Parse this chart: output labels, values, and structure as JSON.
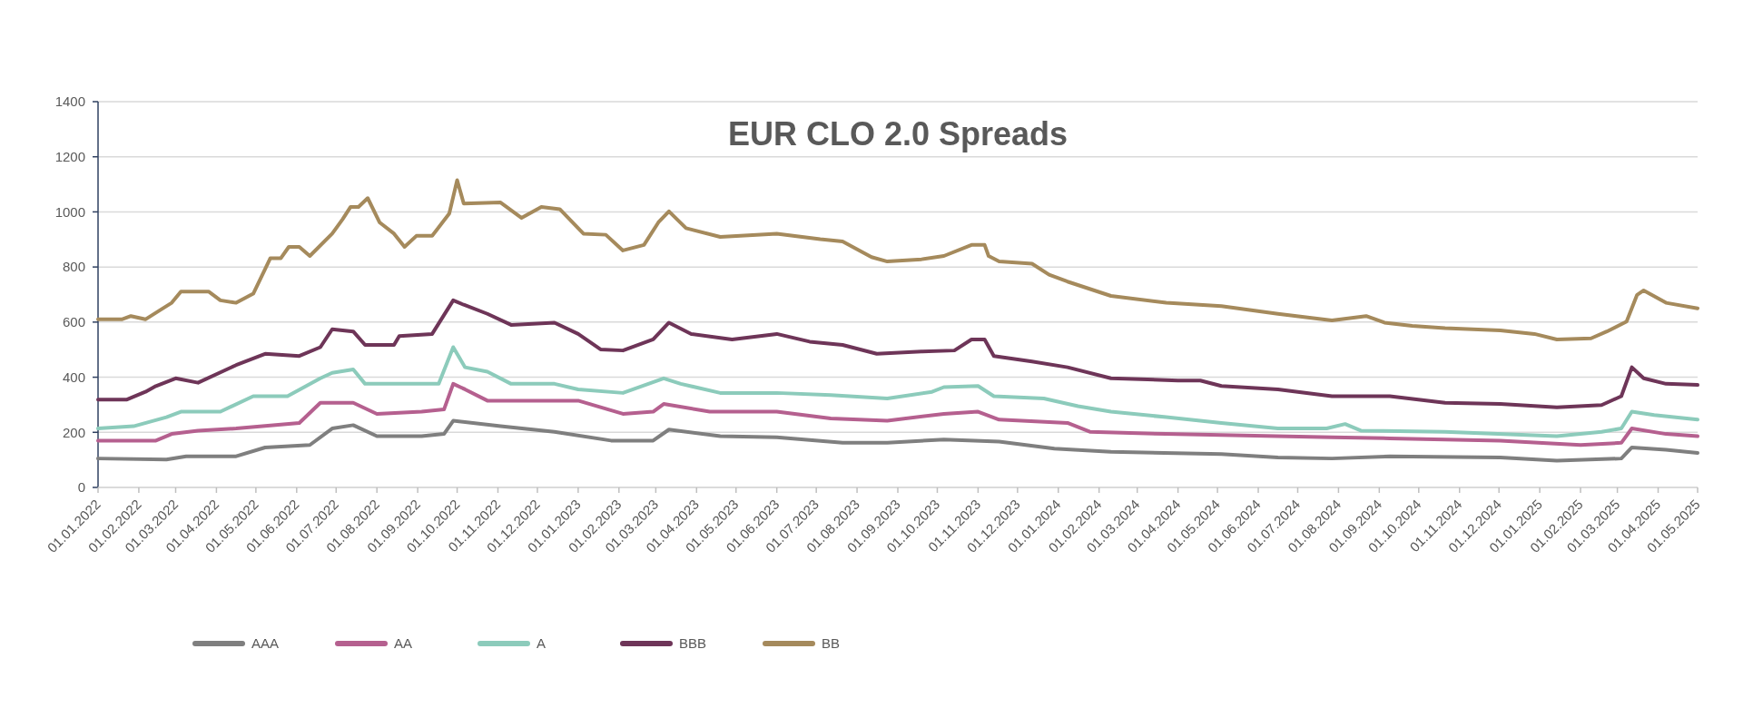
{
  "chart_data": {
    "type": "line",
    "title": "EUR CLO 2.0 Spreads",
    "legend": "bottom",
    "grid": "y",
    "line_style": "solid",
    "marker": "none",
    "xlim": [
      "2022-01-01",
      "2025-05-01"
    ],
    "ylim": [
      0,
      1400
    ],
    "yticks": [
      0,
      200,
      400,
      600,
      800,
      1000,
      1200,
      1400
    ],
    "xticks": [
      {
        "value": "2022-01-01",
        "label": "01.01.2022"
      },
      {
        "value": "2022-02-01",
        "label": "01.02.2022"
      },
      {
        "value": "2022-03-01",
        "label": "01.03.2022"
      },
      {
        "value": "2022-04-01",
        "label": "01.04.2022"
      },
      {
        "value": "2022-05-01",
        "label": "01.05.2022"
      },
      {
        "value": "2022-06-01",
        "label": "01.06.2022"
      },
      {
        "value": "2022-07-01",
        "label": "01.07.2022"
      },
      {
        "value": "2022-08-01",
        "label": "01.08.2022"
      },
      {
        "value": "2022-09-01",
        "label": "01.09.2022"
      },
      {
        "value": "2022-10-01",
        "label": "01.10.2022"
      },
      {
        "value": "2022-11-01",
        "label": "01.11.2022"
      },
      {
        "value": "2022-12-01",
        "label": "01.12.2022"
      },
      {
        "value": "2023-01-01",
        "label": "01.01.2023"
      },
      {
        "value": "2023-02-01",
        "label": "01.02.2023"
      },
      {
        "value": "2023-03-01",
        "label": "01.03.2023"
      },
      {
        "value": "2023-04-01",
        "label": "01.04.2023"
      },
      {
        "value": "2023-05-01",
        "label": "01.05.2023"
      },
      {
        "value": "2023-06-01",
        "label": "01.06.2023"
      },
      {
        "value": "2023-07-01",
        "label": "01.07.2023"
      },
      {
        "value": "2023-08-01",
        "label": "01.08.2023"
      },
      {
        "value": "2023-09-01",
        "label": "01.09.2023"
      },
      {
        "value": "2023-10-01",
        "label": "01.10.2023"
      },
      {
        "value": "2023-11-01",
        "label": "01.11.2023"
      },
      {
        "value": "2023-12-01",
        "label": "01.12.2023"
      },
      {
        "value": "2024-01-01",
        "label": "01.01.2024"
      },
      {
        "value": "2024-02-01",
        "label": "01.02.2024"
      },
      {
        "value": "2024-03-01",
        "label": "01.03.2024"
      },
      {
        "value": "2024-04-01",
        "label": "01.04.2024"
      },
      {
        "value": "2024-05-01",
        "label": "01.05.2024"
      },
      {
        "value": "2024-06-01",
        "label": "01.06.2024"
      },
      {
        "value": "2024-07-01",
        "label": "01.07.2024"
      },
      {
        "value": "2024-08-01",
        "label": "01.08.2024"
      },
      {
        "value": "2024-09-01",
        "label": "01.09.2024"
      },
      {
        "value": "2024-10-01",
        "label": "01.10.2024"
      },
      {
        "value": "2024-11-01",
        "label": "01.11.2024"
      },
      {
        "value": "2024-12-01",
        "label": "01.12.2024"
      },
      {
        "value": "2025-01-01",
        "label": "01.01.2025"
      },
      {
        "value": "2025-02-01",
        "label": "01.02.2025"
      },
      {
        "value": "2025-03-01",
        "label": "01.03.2025"
      },
      {
        "value": "2025-04-01",
        "label": "01.04.2025"
      },
      {
        "value": "2025-05-01",
        "label": "01.05.2025"
      }
    ],
    "series": [
      {
        "name": "AAA",
        "color": "#7f7f7f",
        "x": [
          "2022-01-01",
          "2022-02-22",
          "2022-03-09",
          "2022-04-16",
          "2022-05-08",
          "2022-06-11",
          "2022-06-28",
          "2022-07-14",
          "2022-08-01",
          "2022-09-04",
          "2022-09-21",
          "2022-09-28",
          "2022-11-03",
          "2022-12-14",
          "2023-01-26",
          "2023-02-27",
          "2023-03-11",
          "2023-04-19",
          "2023-06-01",
          "2023-07-21",
          "2023-08-24",
          "2023-10-06",
          "2023-11-17",
          "2023-12-29",
          "2024-02-10",
          "2024-05-04",
          "2024-06-16",
          "2024-07-27",
          "2024-09-09",
          "2024-12-02",
          "2025-01-14",
          "2025-03-04",
          "2025-03-12",
          "2025-04-07",
          "2025-05-01"
        ],
        "values": [
          105,
          101,
          113,
          113,
          145,
          154,
          214,
          226,
          186,
          186,
          194,
          242,
          222,
          202,
          170,
          170,
          210,
          186,
          182,
          162,
          162,
          174,
          166,
          141,
          129,
          121,
          109,
          105,
          113,
          109,
          97,
          105,
          145,
          137,
          125
        ]
      },
      {
        "name": "AA",
        "color": "#b5608f",
        "x": [
          "2022-01-01",
          "2022-02-14",
          "2022-02-26",
          "2022-03-18",
          "2022-04-16",
          "2022-06-03",
          "2022-06-19",
          "2022-07-14",
          "2022-08-01",
          "2022-09-04",
          "2022-09-21",
          "2022-09-28",
          "2022-10-07",
          "2022-10-24",
          "2023-01-01",
          "2023-02-04",
          "2023-02-27",
          "2023-03-07",
          "2023-04-11",
          "2023-06-01",
          "2023-07-12",
          "2023-08-24",
          "2023-10-06",
          "2023-11-01",
          "2023-11-17",
          "2024-01-08",
          "2024-01-25",
          "2024-03-23",
          "2024-07-27",
          "2024-09-09",
          "2024-12-02",
          "2025-02-01",
          "2025-03-04",
          "2025-03-12",
          "2025-04-07",
          "2025-05-01"
        ],
        "values": [
          170,
          170,
          194,
          206,
          214,
          234,
          307,
          307,
          267,
          275,
          283,
          376,
          356,
          315,
          315,
          267,
          275,
          303,
          275,
          275,
          250,
          242,
          267,
          275,
          246,
          234,
          202,
          194,
          182,
          178,
          170,
          154,
          162,
          214,
          194,
          186
        ]
      },
      {
        "name": "A",
        "color": "#8ccbbb",
        "x": [
          "2022-01-01",
          "2022-01-28",
          "2022-02-22",
          "2022-03-05",
          "2022-04-04",
          "2022-04-29",
          "2022-05-25",
          "2022-06-19",
          "2022-06-28",
          "2022-07-14",
          "2022-07-23",
          "2022-08-14",
          "2022-09-17",
          "2022-09-28",
          "2022-10-07",
          "2022-10-24",
          "2022-11-11",
          "2022-12-14",
          "2023-01-01",
          "2023-02-04",
          "2023-03-07",
          "2023-03-20",
          "2023-04-19",
          "2023-06-01",
          "2023-07-12",
          "2023-08-24",
          "2023-09-27",
          "2023-10-06",
          "2023-11-01",
          "2023-11-13",
          "2023-12-21",
          "2024-01-16",
          "2024-02-10",
          "2024-03-23",
          "2024-05-04",
          "2024-06-16",
          "2024-07-23",
          "2024-08-06",
          "2024-08-18",
          "2024-10-21",
          "2025-01-14",
          "2025-02-17",
          "2025-03-04",
          "2025-03-12",
          "2025-03-29",
          "2025-05-01"
        ],
        "values": [
          214,
          222,
          255,
          275,
          275,
          331,
          331,
          396,
          416,
          428,
          376,
          376,
          376,
          509,
          436,
          420,
          376,
          376,
          356,
          343,
          396,
          376,
          343,
          343,
          335,
          323,
          347,
          364,
          368,
          331,
          323,
          295,
          275,
          255,
          234,
          214,
          214,
          230,
          206,
          202,
          186,
          202,
          214,
          275,
          263,
          246
        ]
      },
      {
        "name": "BBB",
        "color": "#6e3558",
        "x": [
          "2022-01-01",
          "2022-01-23",
          "2022-02-06",
          "2022-02-14",
          "2022-03-01",
          "2022-03-18",
          "2022-04-16",
          "2022-05-08",
          "2022-06-03",
          "2022-06-19",
          "2022-06-28",
          "2022-07-14",
          "2022-07-23",
          "2022-08-14",
          "2022-08-18",
          "2022-09-12",
          "2022-09-28",
          "2022-10-06",
          "2022-10-24",
          "2022-11-11",
          "2022-12-14",
          "2023-01-01",
          "2023-01-18",
          "2023-02-04",
          "2023-02-27",
          "2023-03-11",
          "2023-03-28",
          "2023-04-28",
          "2023-06-01",
          "2023-06-26",
          "2023-07-21",
          "2023-08-16",
          "2023-09-19",
          "2023-10-14",
          "2023-10-27",
          "2023-11-06",
          "2023-11-13",
          "2023-12-12",
          "2024-01-08",
          "2024-02-10",
          "2024-04-01",
          "2024-04-18",
          "2024-05-04",
          "2024-06-16",
          "2024-07-27",
          "2024-09-09",
          "2024-10-21",
          "2024-12-02",
          "2025-01-14",
          "2025-02-17",
          "2025-03-04",
          "2025-03-12",
          "2025-03-21",
          "2025-04-07",
          "2025-05-01"
        ],
        "values": [
          319,
          319,
          347,
          368,
          396,
          380,
          444,
          485,
          477,
          509,
          574,
          566,
          517,
          517,
          549,
          557,
          679,
          663,
          630,
          590,
          598,
          557,
          501,
          497,
          537,
          598,
          557,
          537,
          557,
          529,
          517,
          485,
          493,
          497,
          537,
          537,
          477,
          457,
          436,
          396,
          388,
          388,
          368,
          356,
          331,
          331,
          307,
          303,
          291,
          299,
          331,
          436,
          396,
          376,
          372
        ]
      },
      {
        "name": "BB",
        "color": "#a58a5c",
        "x": [
          "2022-01-01",
          "2022-01-19",
          "2022-01-26",
          "2022-02-06",
          "2022-02-18",
          "2022-02-26",
          "2022-03-05",
          "2022-03-26",
          "2022-04-04",
          "2022-04-16",
          "2022-04-29",
          "2022-05-12",
          "2022-05-20",
          "2022-05-26",
          "2022-06-03",
          "2022-06-11",
          "2022-06-28",
          "2022-07-06",
          "2022-07-12",
          "2022-07-18",
          "2022-07-25",
          "2022-08-03",
          "2022-08-14",
          "2022-08-22",
          "2022-08-31",
          "2022-09-12",
          "2022-09-25",
          "2022-10-01",
          "2022-10-06",
          "2022-11-03",
          "2022-11-19",
          "2022-12-04",
          "2022-12-18",
          "2023-01-05",
          "2023-01-22",
          "2023-02-04",
          "2023-02-20",
          "2023-03-03",
          "2023-03-11",
          "2023-03-24",
          "2023-04-19",
          "2023-06-01",
          "2023-07-04",
          "2023-07-21",
          "2023-08-12",
          "2023-08-24",
          "2023-09-19",
          "2023-10-06",
          "2023-10-27",
          "2023-11-06",
          "2023-11-09",
          "2023-11-17",
          "2023-12-12",
          "2023-12-25",
          "2024-01-08",
          "2024-02-10",
          "2024-03-23",
          "2024-05-04",
          "2024-06-16",
          "2024-07-27",
          "2024-08-22",
          "2024-09-05",
          "2024-09-26",
          "2024-10-21",
          "2024-12-02",
          "2024-12-28",
          "2025-01-14",
          "2025-02-09",
          "2025-02-21",
          "2025-03-08",
          "2025-03-16",
          "2025-03-21",
          "2025-04-07",
          "2025-05-01"
        ],
        "values": [
          610,
          610,
          622,
          610,
          646,
          670,
          711,
          711,
          679,
          670,
          703,
          832,
          832,
          873,
          873,
          840,
          921,
          974,
          1018,
          1018,
          1050,
          962,
          921,
          873,
          913,
          913,
          994,
          1115,
          1030,
          1034,
          978,
          1018,
          1010,
          921,
          917,
          860,
          880,
          962,
          1002,
          941,
          909,
          921,
          901,
          893,
          836,
          820,
          828,
          840,
          880,
          880,
          840,
          820,
          812,
          772,
          747,
          695,
          670,
          658,
          630,
          606,
          622,
          598,
          586,
          578,
          570,
          557,
          537,
          541,
          566,
          602,
          699,
          715,
          670,
          650
        ]
      }
    ]
  }
}
